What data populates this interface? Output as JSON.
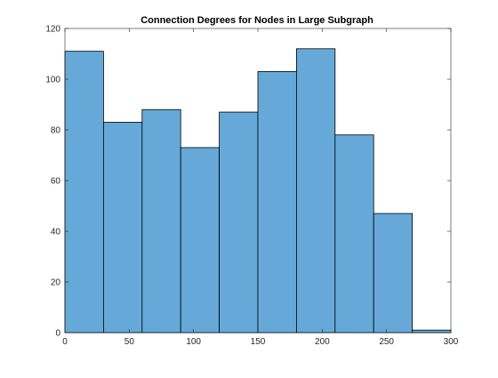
{
  "chart_data": {
    "type": "bar",
    "title": "Connection Degrees for Nodes in Large Subgraph",
    "xlabel": "",
    "ylabel": "",
    "xlim": [
      0,
      300
    ],
    "ylim": [
      0,
      120
    ],
    "xticks": [
      0,
      50,
      100,
      150,
      200,
      250,
      300
    ],
    "yticks": [
      0,
      20,
      40,
      60,
      80,
      100,
      120
    ],
    "bin_edges": [
      0,
      30,
      60,
      90,
      120,
      150,
      180,
      210,
      240,
      270,
      300
    ],
    "counts": [
      111,
      83,
      88,
      73,
      87,
      103,
      112,
      78,
      47,
      1
    ],
    "grid": false,
    "colors": {
      "bar_fill": "#66a9d8",
      "bar_edge": "#000000",
      "axes": "#262626"
    }
  }
}
